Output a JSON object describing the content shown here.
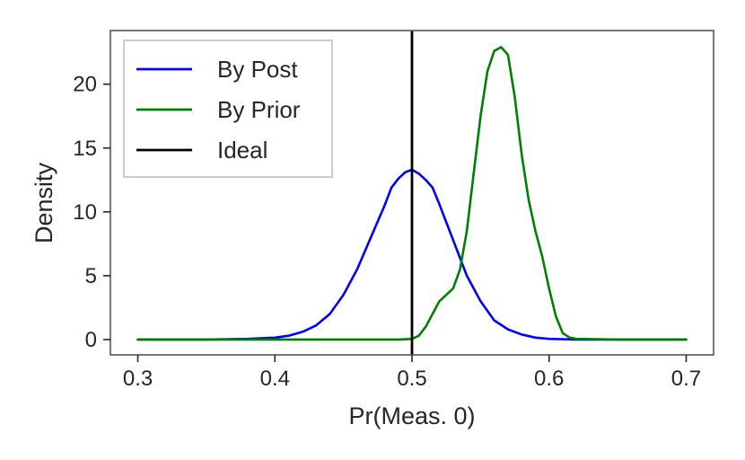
{
  "chart_data": {
    "type": "line",
    "title": "",
    "xlabel": "Pr(Meas. 0)",
    "ylabel": "Density",
    "xlim": [
      0.28,
      0.72
    ],
    "ylim": [
      -1.2,
      24.2
    ],
    "x_ticks": [
      0.3,
      0.4,
      0.5,
      0.6,
      0.7
    ],
    "x_tick_labels": [
      "0.3",
      "0.4",
      "0.5",
      "0.6",
      "0.7"
    ],
    "y_ticks": [
      0,
      5,
      10,
      15,
      20
    ],
    "y_tick_labels": [
      "0",
      "5",
      "10",
      "15",
      "20"
    ],
    "grid": false,
    "legend": {
      "placement": "top-left",
      "entries": [
        {
          "label": "By Post",
          "color": "#0000ff"
        },
        {
          "label": "By Prior",
          "color": "#008000"
        },
        {
          "label": "Ideal",
          "color": "#000000"
        }
      ]
    },
    "series": [
      {
        "name": "By Post",
        "color": "#0000ff",
        "x": [
          0.3,
          0.35,
          0.38,
          0.4,
          0.41,
          0.42,
          0.43,
          0.44,
          0.45,
          0.46,
          0.47,
          0.48,
          0.485,
          0.49,
          0.495,
          0.5,
          0.505,
          0.51,
          0.515,
          0.52,
          0.53,
          0.54,
          0.55,
          0.56,
          0.57,
          0.58,
          0.59,
          0.6,
          0.62,
          0.65,
          0.7
        ],
        "y": [
          0.0,
          0.0,
          0.05,
          0.15,
          0.3,
          0.6,
          1.1,
          2.0,
          3.5,
          5.5,
          8.0,
          10.5,
          11.9,
          12.6,
          13.1,
          13.3,
          13.0,
          12.5,
          11.9,
          10.6,
          7.8,
          5.0,
          3.0,
          1.5,
          0.8,
          0.4,
          0.15,
          0.05,
          0.0,
          0.0,
          0.0
        ]
      },
      {
        "name": "By Prior",
        "color": "#008000",
        "x": [
          0.3,
          0.4,
          0.49,
          0.5,
          0.505,
          0.51,
          0.515,
          0.52,
          0.525,
          0.53,
          0.535,
          0.54,
          0.545,
          0.55,
          0.555,
          0.56,
          0.565,
          0.57,
          0.575,
          0.58,
          0.585,
          0.59,
          0.595,
          0.6,
          0.605,
          0.61,
          0.615,
          0.62,
          0.65,
          0.7
        ],
        "y": [
          0.0,
          0.0,
          0.0,
          0.05,
          0.3,
          1.0,
          2.0,
          3.0,
          3.5,
          4.0,
          5.5,
          8.5,
          13.0,
          17.5,
          21.0,
          22.6,
          22.9,
          22.3,
          19.0,
          14.5,
          11.0,
          8.5,
          6.5,
          4.0,
          1.8,
          0.5,
          0.15,
          0.05,
          0.0,
          0.0
        ]
      }
    ],
    "vlines": [
      {
        "name": "Ideal",
        "x": 0.5,
        "color": "#000000"
      }
    ]
  }
}
